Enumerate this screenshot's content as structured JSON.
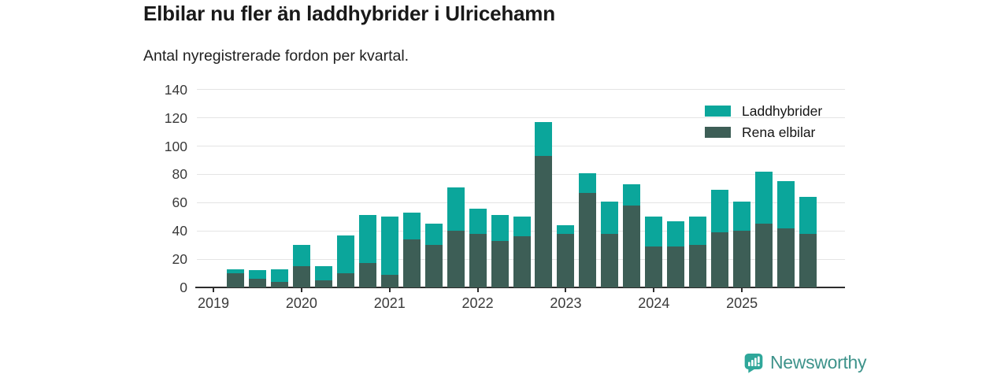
{
  "chart_data": {
    "type": "bar",
    "stacked": true,
    "title": "Elbilar nu fler än laddhybrider i Ulricehamn",
    "subtitle": "Antal nyregistrerade fordon per kvartal.",
    "categories": [
      "2019 Q1",
      "2019 Q2",
      "2019 Q3",
      "2019 Q4",
      "2020 Q1",
      "2020 Q2",
      "2020 Q3",
      "2020 Q4",
      "2021 Q1",
      "2021 Q2",
      "2021 Q3",
      "2021 Q4",
      "2022 Q1",
      "2022 Q2",
      "2022 Q3",
      "2022 Q4",
      "2023 Q1",
      "2023 Q2",
      "2023 Q3",
      "2023 Q4",
      "2024 Q1",
      "2024 Q2",
      "2024 Q3",
      "2024 Q4",
      "2025 Q1",
      "2025 Q2",
      "2025 Q3",
      "2025 Q4"
    ],
    "series": [
      {
        "name": "Laddhybrider",
        "color": "#0BA69B",
        "values": [
          0,
          3,
          6,
          9,
          15,
          10,
          27,
          34,
          41,
          19,
          15,
          31,
          18,
          18,
          14,
          24,
          6,
          14,
          23,
          15,
          21,
          18,
          20,
          30,
          21,
          37,
          33,
          26
        ]
      },
      {
        "name": "Rena elbilar",
        "color": "#3D5E56",
        "values": [
          0,
          10,
          6,
          4,
          15,
          5,
          10,
          17,
          9,
          34,
          30,
          40,
          38,
          33,
          36,
          93,
          38,
          67,
          38,
          58,
          29,
          29,
          30,
          39,
          40,
          45,
          42,
          38
        ]
      }
    ],
    "stack_note": "Rena elbilar is the bottom segment, Laddhybrider stacked on top",
    "ylim": [
      0,
      140
    ],
    "yticks": [
      0,
      20,
      40,
      60,
      80,
      100,
      120,
      140
    ],
    "year_labels": [
      "2019",
      "2020",
      "2021",
      "2022",
      "2023",
      "2024",
      "2025"
    ],
    "grid": true,
    "legend_position": "top-right",
    "axis_colors": {
      "grid": "#e4e4e4",
      "axis_line": "#2d2d2d",
      "tick_text": "#3a3a3a"
    }
  },
  "footer": {
    "brand": "Newsworthy",
    "icon_color": "#2FA79A",
    "text_color": "#3E938B"
  }
}
